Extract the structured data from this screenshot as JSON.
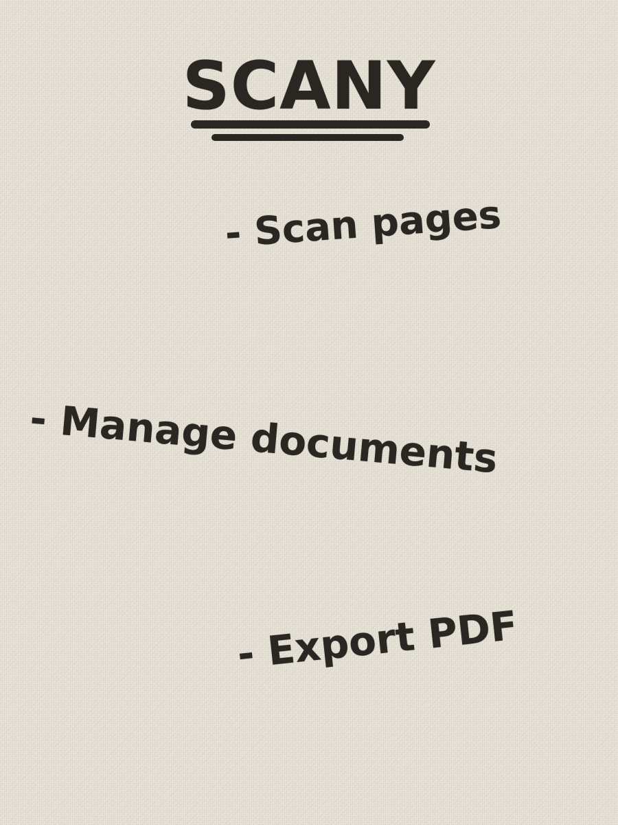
{
  "title": "SCANY",
  "features": [
    "- Scan pages",
    "- Manage documents",
    "- Export PDF"
  ],
  "colors": {
    "paper": "#e9e4d9",
    "ink": "#2a2622"
  }
}
